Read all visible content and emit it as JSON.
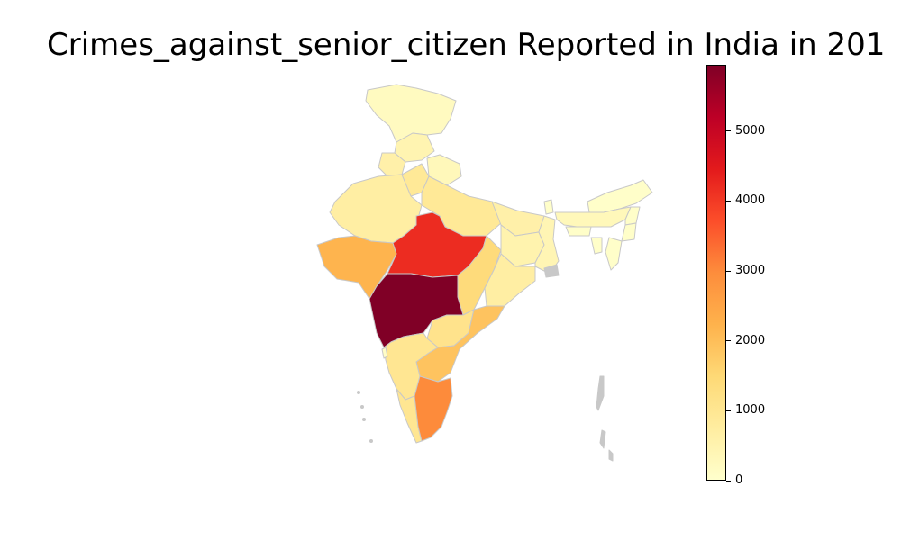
{
  "title": "Crimes_against_senior_citizen Reported in India in 201",
  "colorbar": {
    "min": 0,
    "max": 5950,
    "ticks": [
      "0",
      "1000",
      "2000",
      "3000",
      "4000",
      "5000"
    ],
    "colormap": [
      "#ffffcc",
      "#ffeda0",
      "#fed976",
      "#feb24c",
      "#fd8d3c",
      "#fc4e2a",
      "#e31a1c",
      "#bd0026",
      "#800026"
    ]
  },
  "regions": [
    {
      "name": "Jammu & Kashmir",
      "value": 200
    },
    {
      "name": "Himachal Pradesh",
      "value": 450
    },
    {
      "name": "Punjab",
      "value": 600
    },
    {
      "name": "Uttarakhand",
      "value": 300
    },
    {
      "name": "Haryana",
      "value": 900
    },
    {
      "name": "Rajasthan",
      "value": 700
    },
    {
      "name": "Uttar Pradesh",
      "value": 900
    },
    {
      "name": "Bihar",
      "value": 600
    },
    {
      "name": "Gujarat",
      "value": 2200
    },
    {
      "name": "Madhya Pradesh",
      "value": 4200
    },
    {
      "name": "Chhattisgarh",
      "value": 1400
    },
    {
      "name": "Jharkhand",
      "value": 500
    },
    {
      "name": "West Bengal",
      "value": 400
    },
    {
      "name": "Odisha",
      "value": 700
    },
    {
      "name": "Maharashtra",
      "value": 5950
    },
    {
      "name": "Telangana",
      "value": 1100
    },
    {
      "name": "Andhra Pradesh",
      "value": 1900
    },
    {
      "name": "Karnataka",
      "value": 1000
    },
    {
      "name": "Goa",
      "value": 100
    },
    {
      "name": "Kerala",
      "value": 1000
    },
    {
      "name": "Tamil Nadu",
      "value": 3000
    },
    {
      "name": "Sikkim",
      "value": 50
    },
    {
      "name": "Arunachal Pradesh",
      "value": 50
    },
    {
      "name": "Assam",
      "value": 300
    },
    {
      "name": "Meghalaya",
      "value": 50
    },
    {
      "name": "Nagaland",
      "value": 50
    },
    {
      "name": "Manipur",
      "value": 50
    },
    {
      "name": "Mizoram",
      "value": 50
    },
    {
      "name": "Tripura",
      "value": 50
    }
  ]
}
